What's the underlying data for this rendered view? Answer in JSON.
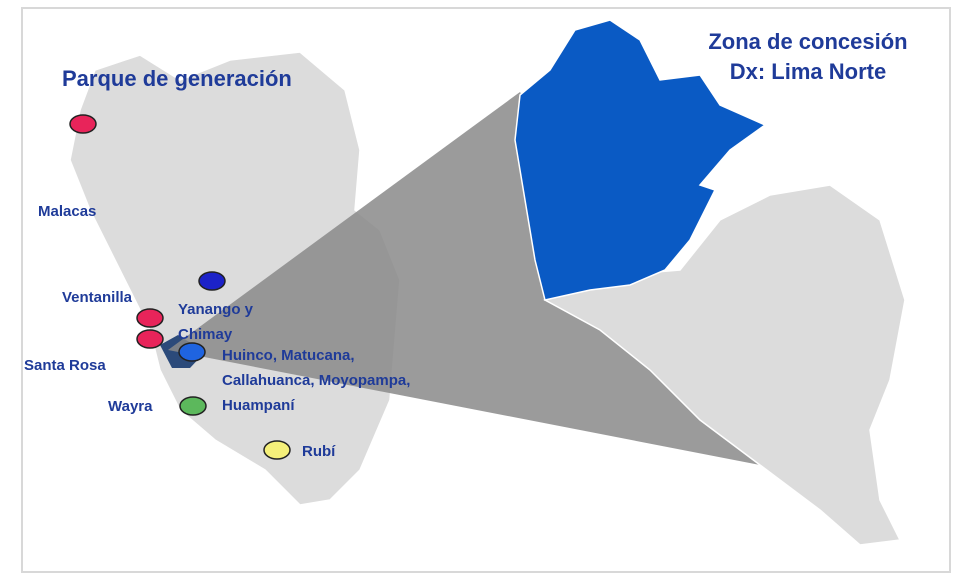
{
  "title": "Parque de generación",
  "zone_title": [
    "Zona de concesión",
    "Dx: Lima Norte"
  ],
  "plants": [
    {
      "label_lines": [
        "Malacas"
      ],
      "color": "#e8245a"
    },
    {
      "label_lines": [
        "Ventanilla"
      ],
      "color": "#e8245a"
    },
    {
      "label_lines": [
        "Santa Rosa"
      ],
      "color": "#e8245a"
    },
    {
      "label_lines": [
        "Yanango y",
        "Chimay"
      ],
      "color": "#1c22c8"
    },
    {
      "label_lines": [
        "Huinco, Matucana,",
        "Callahuanca, Moyopampa,",
        "Huampaní"
      ],
      "color": "#1f64e0"
    },
    {
      "label_lines": [
        "Wayra"
      ],
      "color": "#5cb85c"
    },
    {
      "label_lines": [
        "Rubí"
      ],
      "color": "#f5f07a"
    }
  ]
}
